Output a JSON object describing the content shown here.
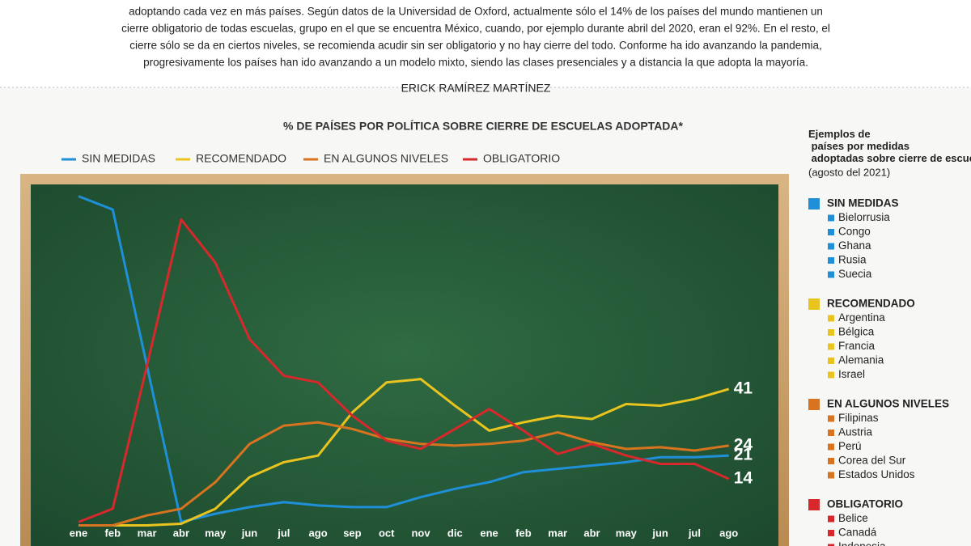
{
  "intro": [
    "adoptando cada vez en más países. Según datos de la Universidad de Oxford, actualmente sólo el 14% de los países del mundo mantienen un",
    "cierre obligatorio de todas escuelas, grupo en el que se encuentra México, cuando, por ejemplo durante abril del 2020, eran el 92%. En el resto, el",
    "cierre sólo se da en ciertos niveles, se recomienda acudir sin ser obligatorio y no hay cierre del todo. Conforme ha ido avanzando la pandemia,",
    "progresivamente los países han ido avanzando a un modelo mixto, siendo las clases presenciales y a distancia la  que adopta la mayoría."
  ],
  "byline": "ERICK RAMÍREZ MARTÍNEZ",
  "chart_data": {
    "type": "line",
    "title": "% DE PAÍSES POR POLÍTICA SOBRE CIERRE DE ESCUELAS ADOPTADA*",
    "categories": [
      "ene",
      "feb",
      "mar",
      "abr",
      "may",
      "jun",
      "jul",
      "ago",
      "sep",
      "oct",
      "nov",
      "dic",
      "ene",
      "feb",
      "mar",
      "abr",
      "may",
      "jun",
      "jul",
      "ago"
    ],
    "ylim": [
      0,
      100
    ],
    "series": [
      {
        "name": "SIN MEDIDAS",
        "color": "#1f8fd8",
        "values": [
          99,
          95,
          48,
          1,
          3.5,
          5.5,
          7,
          6,
          5.5,
          5.5,
          8.5,
          11,
          13,
          16,
          17,
          18,
          19,
          20.5,
          20.5,
          21
        ]
      },
      {
        "name": "RECOMENDADO",
        "color": "#e9c41f",
        "values": [
          0,
          0,
          0,
          0.5,
          5,
          14.5,
          19,
          21,
          34,
          43,
          44,
          36,
          28.5,
          31,
          33,
          32,
          36.5,
          36,
          38,
          41
        ]
      },
      {
        "name": "EN ALGUNOS NIVELES",
        "color": "#d8731f",
        "values": [
          0,
          0,
          3,
          5,
          13,
          24.5,
          30,
          31,
          29,
          26,
          24.5,
          24,
          24.5,
          25.5,
          28,
          25,
          23,
          23.5,
          22.5,
          24
        ]
      },
      {
        "name": "OBLIGATORIO",
        "color": "#d7282b",
        "values": [
          1,
          5,
          48,
          92,
          79,
          56,
          45,
          43,
          33,
          25.5,
          23,
          29,
          35,
          28.5,
          21.5,
          24.5,
          21,
          18.5,
          18.5,
          14
        ]
      }
    ]
  },
  "examples": {
    "title": "Ejemplos de países por medidas adoptadas sobre cierre de escuelas",
    "subtitle": "(agosto del 2021)",
    "groups": [
      {
        "name": "SIN MEDIDAS",
        "color": "#1f8fd8",
        "countries": [
          "Bielorrusia",
          "Congo",
          "Ghana",
          "Rusia",
          "Suecia"
        ]
      },
      {
        "name": "RECOMENDADO",
        "color": "#e9c41f",
        "countries": [
          "Argentina",
          "Bélgica",
          "Francia",
          "Alemania",
          "Israel"
        ]
      },
      {
        "name": "EN ALGUNOS NIVELES",
        "color": "#d8731f",
        "countries": [
          "Filipinas",
          "Austria",
          "Perú",
          "Corea del Sur",
          "Estados Unidos"
        ]
      },
      {
        "name": "OBLIGATORIO",
        "color": "#d7282b",
        "countries": [
          "Belice",
          "Canadá",
          "Indonesia"
        ]
      }
    ]
  }
}
